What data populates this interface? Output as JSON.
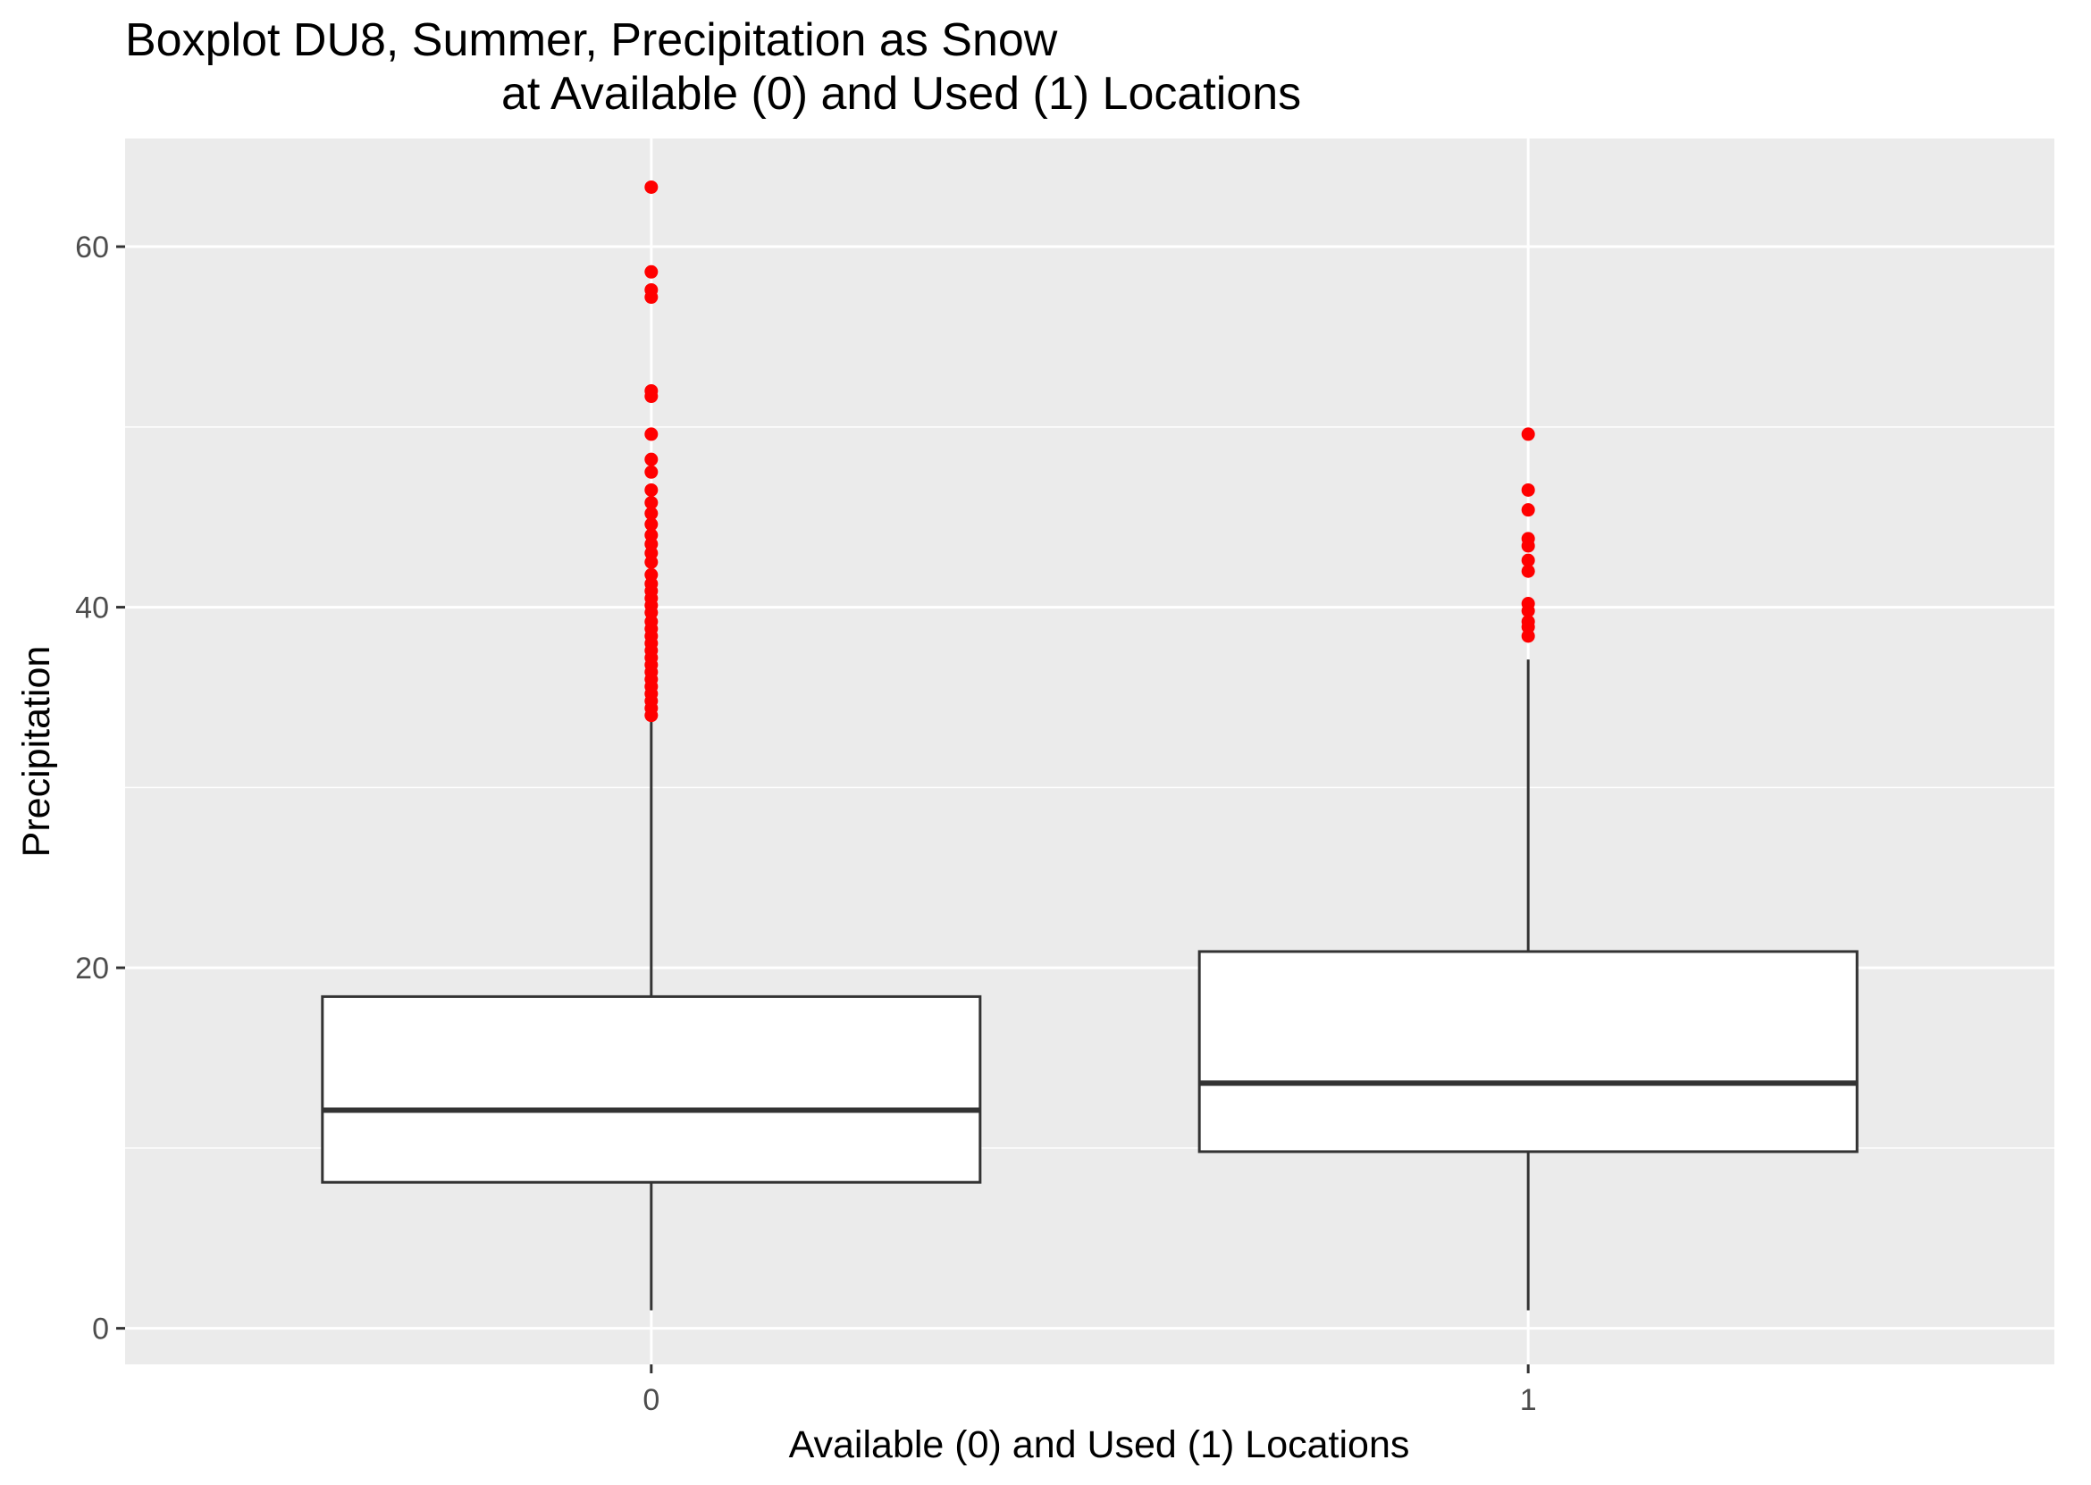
{
  "chart_data": {
    "type": "boxplot",
    "title_lines": [
      "Boxplot DU8, Summer, Precipitation as Snow",
      "at Available (0) and Used (1) Locations"
    ],
    "xlabel": "Available (0) and Used (1) Locations",
    "ylabel": "Precipitation",
    "categories": [
      "0",
      "1"
    ],
    "ylim": [
      -2,
      66
    ],
    "y_ticks": [
      0,
      20,
      40,
      60
    ],
    "y_tick_labels": [
      "0",
      "20",
      "40",
      "60"
    ],
    "grid": true,
    "background": "#ebebeb",
    "outlier_color": "#ff0000",
    "box_fill": "#ffffff",
    "line_color": "#333333",
    "boxes": [
      {
        "category": "0",
        "whisker_low": 1,
        "q1": 8.1,
        "median": 12.1,
        "q3": 18.4,
        "whisker_high": 33.7,
        "outliers": [
          63.3,
          58.6,
          57.6,
          57.2,
          52.0,
          51.7,
          49.6,
          48.2,
          47.5,
          46.5,
          45.8,
          45.2,
          44.6,
          44.0,
          43.5,
          43.0,
          42.5,
          41.8,
          41.3,
          40.9,
          40.5,
          40.1,
          39.7,
          39.2,
          38.8,
          38.4,
          38.0,
          37.6,
          37.2,
          36.8,
          36.4,
          36.0,
          35.6,
          35.2,
          34.8,
          34.4,
          34.0
        ]
      },
      {
        "category": "1",
        "whisker_low": 1,
        "q1": 9.8,
        "median": 13.6,
        "q3": 20.9,
        "whisker_high": 37.1,
        "outliers": [
          49.6,
          46.5,
          45.4,
          43.8,
          43.4,
          42.6,
          42.0,
          40.2,
          39.8,
          39.2,
          38.9,
          38.4
        ]
      }
    ]
  }
}
